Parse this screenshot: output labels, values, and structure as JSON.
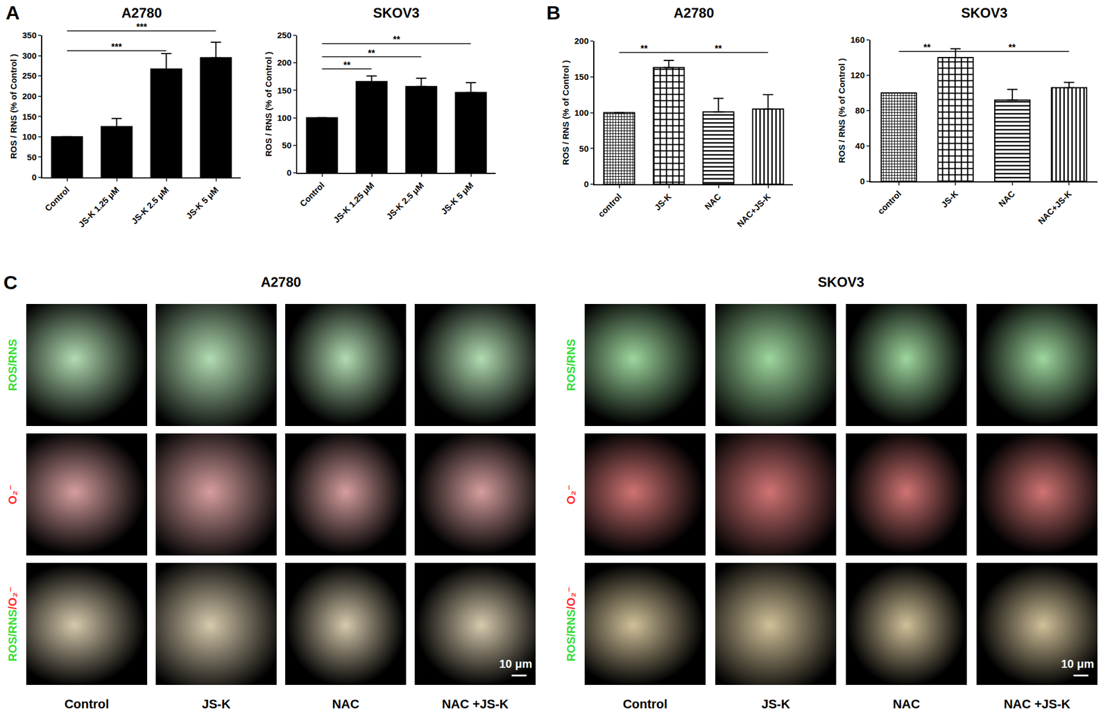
{
  "panel_labels": [
    "A",
    "B",
    "C"
  ],
  "chart_data": [
    {
      "type": "bar",
      "title": "A2780",
      "ylabel": "ROS / RNS (% of Control )",
      "categories": [
        "Control",
        "JS-K 1.25 μM",
        "JS-K 2.5 μM",
        "JS-K 5 μM"
      ],
      "values": [
        100,
        125,
        267,
        295
      ],
      "errors": [
        null,
        20,
        38,
        38
      ],
      "color": "#000000",
      "ylim": [
        0,
        350
      ],
      "yticks": [
        0,
        50,
        100,
        150,
        200,
        250,
        300,
        350
      ],
      "grid": false,
      "comparisons": [
        {
          "from": "Control",
          "to": "JS-K 5 μM",
          "y": 361,
          "label": "***"
        },
        {
          "from": "Control",
          "to": "JS-K 2.5 μM",
          "y": 312,
          "label": "***"
        }
      ]
    },
    {
      "type": "bar",
      "title": "SKOV3",
      "ylabel": "ROS / RNS (% of Control )",
      "categories": [
        "Control",
        "JS-K 1.25 μM",
        "JS-K 2.5 μM",
        "JS-K 5 μM"
      ],
      "values": [
        100,
        166,
        157,
        146
      ],
      "errors": [
        null,
        10,
        15,
        18
      ],
      "color": "#000000",
      "ylim": [
        0,
        250
      ],
      "yticks": [
        0,
        50,
        100,
        150,
        200,
        250
      ],
      "grid": false,
      "comparisons": [
        {
          "from": "Control",
          "to": "JS-K 5 μM",
          "y": 235,
          "label": "**"
        },
        {
          "from": "Control",
          "to": "JS-K 2.5 μM",
          "y": 211,
          "label": "**"
        },
        {
          "from": "Control",
          "to": "JS-K 1.25 μM",
          "y": 189,
          "label": "**"
        }
      ]
    },
    {
      "type": "bar",
      "title": "A2780",
      "ylabel": "ROS / RNS (% of Control )",
      "categories": [
        "control",
        "JS-K",
        "NAC",
        "NAC+JS-K"
      ],
      "values": [
        100,
        163,
        101,
        105
      ],
      "errors": [
        null,
        10,
        19,
        20
      ],
      "color": "#ffffff",
      "ylim": [
        0,
        200
      ],
      "yticks": [
        0,
        50,
        100,
        150,
        200
      ],
      "grid": false,
      "comparisons": [
        {
          "from": "control",
          "to": "JS-K",
          "y": 184,
          "label": "**"
        },
        {
          "from": "JS-K",
          "to": "NAC+JS-K",
          "y": 184,
          "label": "**"
        }
      ]
    },
    {
      "type": "bar",
      "title": "SKOV3",
      "ylabel": "ROS / RNS (% of Control )",
      "categories": [
        "control",
        "JS-K",
        "NAC",
        "NAC+JS-K"
      ],
      "values": [
        100,
        140,
        92,
        106
      ],
      "errors": [
        null,
        10,
        12,
        6
      ],
      "color": "#ffffff",
      "ylim": [
        0,
        160
      ],
      "yticks": [
        0,
        40,
        80,
        120,
        160
      ],
      "grid": false,
      "comparisons": [
        {
          "from": "control",
          "to": "JS-K",
          "y": 147,
          "label": "**"
        },
        {
          "from": "JS-K",
          "to": "NAC+JS-K",
          "y": 147,
          "label": "**"
        }
      ]
    }
  ],
  "panel_c": {
    "groups": [
      "A2780",
      "SKOV3"
    ],
    "columns": [
      "Control",
      "JS-K",
      "NAC",
      "NAC +JS-K"
    ],
    "rows": [
      [
        {
          "text": "ROS/RNS",
          "color": "#33dd33"
        }
      ],
      [
        {
          "text": "O₂⁻",
          "color": "#ff2a2a"
        }
      ],
      [
        {
          "text": "ROS/RNS",
          "color": "#33dd33"
        },
        {
          "text": "/O₂⁻",
          "color": "#ff2a2a"
        }
      ]
    ],
    "scale_bar": "10 μm"
  }
}
